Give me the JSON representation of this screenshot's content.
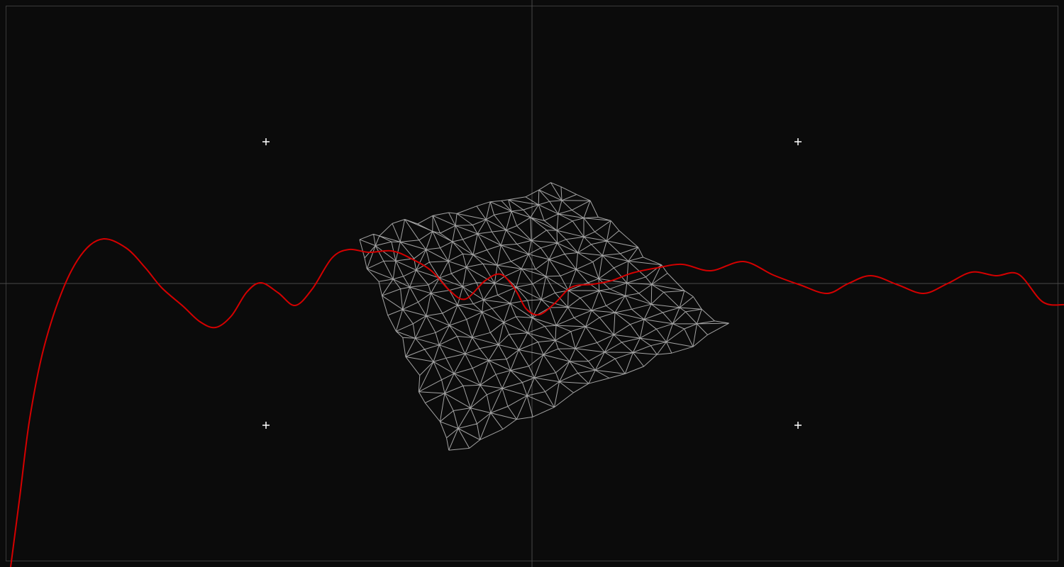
{
  "scene": {
    "background_color": "#0b0b0b",
    "frame_color": "#3a3a3a",
    "axis_color": "#4a4a4a",
    "marker_color": "#ffffff",
    "marker_icon": "crosshair-plus",
    "mesh_color": "#b4b4b4",
    "mesh_style": "wireframe-triangulated-terrain",
    "mesh_grid": {
      "rows": 14,
      "cols": 16
    },
    "curve_color": "#d40000",
    "curve_style": "damped-oscillation",
    "markers": [
      {
        "label": "",
        "quadrant": "top-left"
      },
      {
        "label": "",
        "quadrant": "top-right"
      },
      {
        "label": "",
        "quadrant": "bottom-left"
      },
      {
        "label": "",
        "quadrant": "bottom-right"
      }
    ]
  }
}
